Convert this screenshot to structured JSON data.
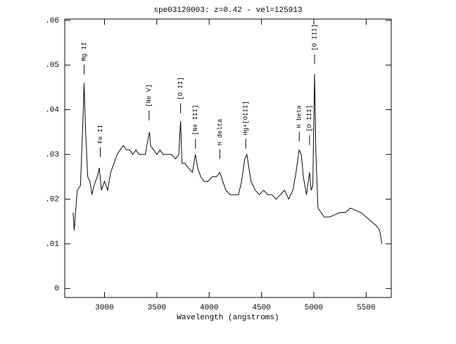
{
  "chart_data": {
    "type": "line",
    "title": "spe03120003: z=0.42 - vel=125913",
    "xlabel": "Wavelength (angstroms)",
    "xlim": [
      2620,
      5740
    ],
    "ylim": [
      -0.002,
      0.0603
    ],
    "xticks": [
      3000,
      3500,
      4000,
      4500,
      5000,
      5500
    ],
    "yticks": [
      0,
      {
        "value": 0.01,
        "label": ".01"
      },
      {
        "value": 0.02,
        "label": ".02"
      },
      {
        "value": 0.03,
        "label": ".03"
      },
      {
        "value": 0.04,
        "label": ".04"
      },
      {
        "value": 0.05,
        "label": ".05"
      },
      {
        "value": 0.06,
        "label": ".06"
      }
    ],
    "series": [
      {
        "color": "#000000",
        "x": [
          2700,
          2710,
          2740,
          2770,
          2790,
          2805,
          2820,
          2840,
          2860,
          2880,
          2900,
          2930,
          2950,
          2970,
          3000,
          3030,
          3060,
          3090,
          3120,
          3150,
          3180,
          3210,
          3240,
          3270,
          3300,
          3330,
          3360,
          3390,
          3420,
          3430,
          3440,
          3470,
          3500,
          3530,
          3560,
          3600,
          3640,
          3680,
          3710,
          3727,
          3740,
          3770,
          3800,
          3840,
          3869,
          3890,
          3920,
          3950,
          3990,
          4030,
          4070,
          4102,
          4130,
          4160,
          4200,
          4240,
          4280,
          4310,
          4340,
          4360,
          4380,
          4400,
          4440,
          4480,
          4520,
          4560,
          4600,
          4640,
          4680,
          4720,
          4760,
          4800,
          4830,
          4860,
          4880,
          4900,
          4930,
          4959,
          4975,
          4990,
          5007,
          5020,
          5040,
          5070,
          5100,
          5150,
          5200,
          5250,
          5300,
          5350,
          5400,
          5450,
          5500,
          5550,
          5600,
          5630,
          5650
        ],
        "values": [
          0.017,
          0.013,
          0.022,
          0.023,
          0.035,
          0.046,
          0.035,
          0.025,
          0.024,
          0.021,
          0.023,
          0.025,
          0.027,
          0.022,
          0.024,
          0.022,
          0.026,
          0.028,
          0.03,
          0.031,
          0.032,
          0.031,
          0.031,
          0.03,
          0.031,
          0.03,
          0.03,
          0.03,
          0.034,
          0.035,
          0.032,
          0.031,
          0.03,
          0.031,
          0.03,
          0.03,
          0.03,
          0.029,
          0.03,
          0.0375,
          0.028,
          0.028,
          0.027,
          0.026,
          0.03,
          0.027,
          0.025,
          0.024,
          0.024,
          0.025,
          0.025,
          0.026,
          0.024,
          0.022,
          0.021,
          0.021,
          0.021,
          0.024,
          0.029,
          0.03,
          0.027,
          0.024,
          0.022,
          0.021,
          0.022,
          0.021,
          0.021,
          0.02,
          0.021,
          0.022,
          0.02,
          0.022,
          0.026,
          0.031,
          0.03,
          0.025,
          0.021,
          0.026,
          0.022,
          0.023,
          0.048,
          0.03,
          0.018,
          0.017,
          0.016,
          0.016,
          0.0165,
          0.017,
          0.017,
          0.018,
          0.0175,
          0.017,
          0.016,
          0.015,
          0.014,
          0.013,
          0.01
        ]
      }
    ],
    "annotations": [
      {
        "text": "Mg II",
        "x": 2805,
        "y": 0.0479
      },
      {
        "text": "Fe II",
        "x": 2960,
        "y": 0.0294
      },
      {
        "text": "[Ne V]",
        "x": 3426,
        "y": 0.0376
      },
      {
        "text": "[O II]",
        "x": 3727,
        "y": 0.0392
      },
      {
        "text": "[Ne III]",
        "x": 3869,
        "y": 0.0313
      },
      {
        "text": "H delta",
        "x": 4102,
        "y": 0.029
      },
      {
        "text": "Hg+[OIII]",
        "x": 4350,
        "y": 0.0313
      },
      {
        "text": "H beta",
        "x": 4861,
        "y": 0.0329
      },
      {
        "text": "[O III]",
        "x": 4959,
        "y": 0.0321
      },
      {
        "text": "[O III]",
        "x": 5007,
        "y": 0.0502
      }
    ]
  }
}
